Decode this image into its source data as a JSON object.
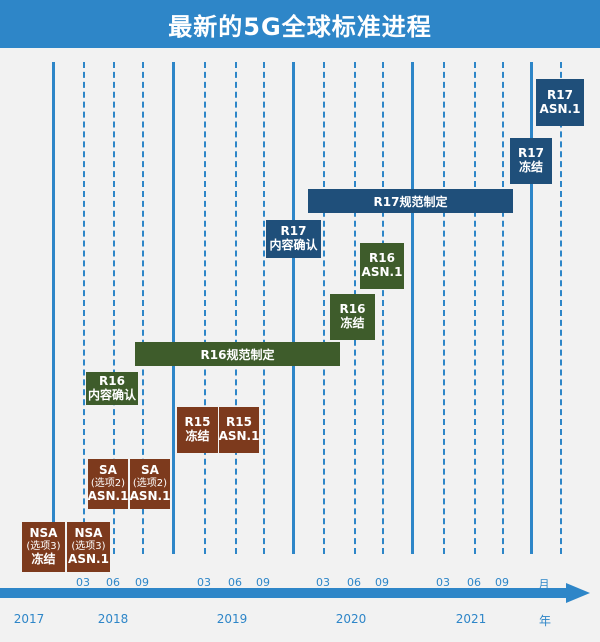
{
  "title": "最新的5G全球标准进程",
  "axis": {
    "months": [
      "03",
      "06",
      "09",
      "03",
      "06",
      "09",
      "03",
      "06",
      "09",
      "03",
      "06",
      "09"
    ],
    "month_unit": "月",
    "years": [
      "2017",
      "2018",
      "2019",
      "2020",
      "2021"
    ],
    "year_unit": "年"
  },
  "milestones": {
    "nsa_freeze": {
      "line1": "NSA",
      "line2": "(选项3)",
      "line3": "冻结"
    },
    "nsa_asn1": {
      "line1": "NSA",
      "line2": "(选项3)",
      "line3": "ASN.1"
    },
    "sa_freeze": {
      "line1": "SA",
      "line2": "(选项2)",
      "line3": "ASN.1"
    },
    "sa_asn1": {
      "line1": "SA",
      "line2": "(选项2)",
      "line3": "ASN.1"
    },
    "r16_confirm": {
      "line1": "R16",
      "line2": "内容确认"
    },
    "r15_freeze": {
      "line1": "R15",
      "line2": "冻结"
    },
    "r15_asn1": {
      "line1": "R15",
      "line2": "ASN.1"
    },
    "r16_spec": {
      "label": "R16规范制定"
    },
    "r16_freeze": {
      "line1": "R16",
      "line2": "冻结"
    },
    "r16_asn1": {
      "line1": "R16",
      "line2": "ASN.1"
    },
    "r17_confirm": {
      "line1": "R17",
      "line2": "内容确认"
    },
    "r17_spec": {
      "label": "R17规范制定"
    },
    "r17_freeze": {
      "line1": "R17",
      "line2": "冻结"
    },
    "r17_asn1": {
      "line1": "R17",
      "line2": "ASN.1"
    }
  },
  "colors": {
    "accent": "#2e86c8",
    "r15": "#7d3a1d",
    "r16": "#3e5c2b",
    "r17": "#1f4f7a"
  }
}
